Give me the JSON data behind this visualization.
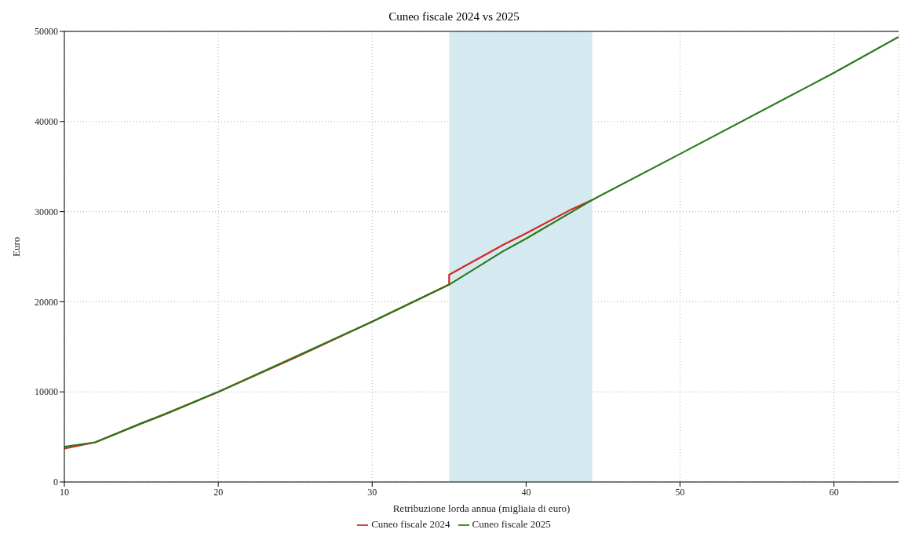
{
  "chart_data": {
    "type": "line",
    "title": "Cuneo fiscale 2024 vs 2025",
    "xlabel": "Retribuzione lorda annua (migliaia di euro)",
    "ylabel": "Euro",
    "series": [
      {
        "name": "Cuneo fiscale 2024",
        "color": "#d62728",
        "x": [
          10,
          12,
          15,
          16.5,
          20,
          25,
          30,
          35,
          35,
          38.5,
          40,
          43,
          44.3
        ],
        "values": [
          3700,
          4400,
          6500,
          7500,
          10000,
          13800,
          17800,
          21900,
          23000,
          26300,
          27600,
          30300,
          31300
        ]
      },
      {
        "name": "Cuneo fiscale 2025",
        "color": "#2a7a1a",
        "x": [
          10,
          12,
          15,
          16.5,
          20,
          25,
          30,
          35,
          38.5,
          40,
          44.3,
          50,
          60,
          64.2
        ],
        "values": [
          3900,
          4400,
          6500,
          7500,
          10000,
          13900,
          17800,
          21900,
          25600,
          27000,
          31300,
          36400,
          45400,
          49400
        ]
      }
    ],
    "bands": [
      {
        "axis": "x",
        "from": 35,
        "to": 44.3,
        "color": "#d4eaf0"
      }
    ],
    "xlim": [
      10,
      64.2
    ],
    "xticks": [
      10,
      20,
      30,
      40,
      50,
      60
    ],
    "ylim": [
      0,
      50000
    ],
    "yticks": [
      0,
      10000,
      20000,
      30000,
      40000,
      50000
    ],
    "grid": true,
    "legend": "bottom",
    "line_style": "solid",
    "marker": "none"
  }
}
